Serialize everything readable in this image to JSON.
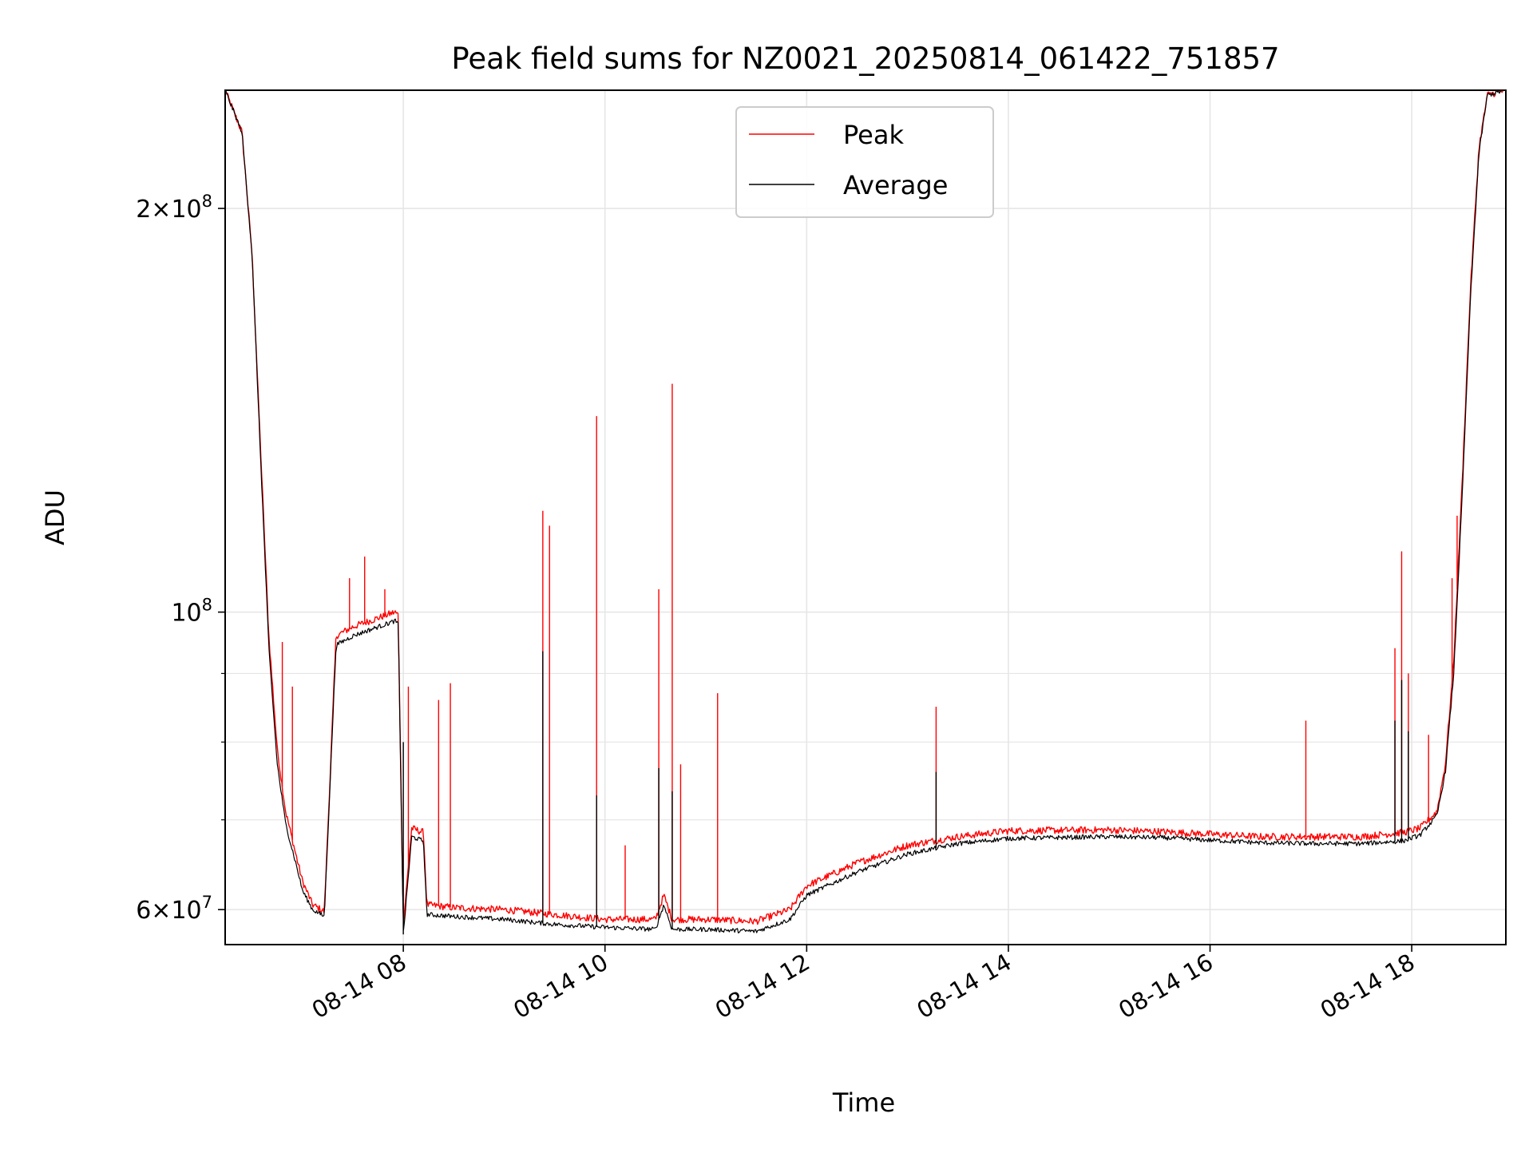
{
  "chart_data": {
    "type": "line",
    "title": "Peak field sums for NZ0021_20250814_061422_751857",
    "xlabel": "Time",
    "ylabel": "ADU",
    "y_scale": "log",
    "ylim": [
      56500000,
      245000000
    ],
    "xlim": [
      "2025-08-14 06:14",
      "2025-08-14 18:56"
    ],
    "grid": true,
    "legend_position": "upper center",
    "x_ticks": [
      {
        "label": "08-14 08",
        "value": "2025-08-14 08:00"
      },
      {
        "label": "08-14 10",
        "value": "2025-08-14 10:00"
      },
      {
        "label": "08-14 12",
        "value": "2025-08-14 12:00"
      },
      {
        "label": "08-14 14",
        "value": "2025-08-14 14:00"
      },
      {
        "label": "08-14 16",
        "value": "2025-08-14 16:00"
      },
      {
        "label": "08-14 18",
        "value": "2025-08-14 18:00"
      }
    ],
    "y_ticks": [
      {
        "label_base": "6×10",
        "label_exp": "7",
        "value": 60000000
      },
      {
        "label_base": "10",
        "label_exp": "8",
        "value": 100000000
      },
      {
        "label_base": "2×10",
        "label_exp": "8",
        "value": 200000000
      }
    ],
    "y_minor_ticks": [
      70000000,
      80000000,
      90000000
    ],
    "series": [
      {
        "name": "Peak",
        "color": "#ff0000",
        "x": [
          "2025-08-14 06:14",
          "2025-08-14 06:24",
          "2025-08-14 06:30",
          "2025-08-14 06:35",
          "2025-08-14 06:40",
          "2025-08-14 06:45",
          "2025-08-14 06:50",
          "2025-08-14 06:56",
          "2025-08-14 07:00",
          "2025-08-14 07:06",
          "2025-08-14 07:13",
          "2025-08-14 07:20",
          "2025-08-14 07:30",
          "2025-08-14 07:45",
          "2025-08-14 07:55",
          "2025-08-14 07:57",
          "2025-08-14 08:00",
          "2025-08-14 08:05",
          "2025-08-14 08:12",
          "2025-08-14 08:14",
          "2025-08-14 08:30",
          "2025-08-14 09:00",
          "2025-08-14 09:30",
          "2025-08-14 10:00",
          "2025-08-14 10:30",
          "2025-08-14 10:35",
          "2025-08-14 10:40",
          "2025-08-14 11:00",
          "2025-08-14 11:30",
          "2025-08-14 11:50",
          "2025-08-14 12:00",
          "2025-08-14 12:30",
          "2025-08-14 13:00",
          "2025-08-14 13:30",
          "2025-08-14 14:00",
          "2025-08-14 15:00",
          "2025-08-14 15:30",
          "2025-08-14 16:00",
          "2025-08-14 16:30",
          "2025-08-14 17:00",
          "2025-08-14 17:30",
          "2025-08-14 17:55",
          "2025-08-14 18:05",
          "2025-08-14 18:15",
          "2025-08-14 18:20",
          "2025-08-14 18:25",
          "2025-08-14 18:30",
          "2025-08-14 18:35",
          "2025-08-14 18:40",
          "2025-08-14 18:45",
          "2025-08-14 18:56"
        ],
        "values": [
          245000000,
          228000000,
          185000000,
          133000000,
          96000000,
          79000000,
          71000000,
          66000000,
          63000000,
          60500000,
          59800000,
          96000000,
          97500000,
          99000000,
          100000000,
          99500000,
          58500000,
          69000000,
          68500000,
          60500000,
          60200000,
          60000000,
          59500000,
          59000000,
          59000000,
          61500000,
          59000000,
          59000000,
          58800000,
          60000000,
          62500000,
          65000000,
          67000000,
          68000000,
          68700000,
          68800000,
          68600000,
          68300000,
          68000000,
          68000000,
          68000000,
          68500000,
          69000000,
          71000000,
          77000000,
          92000000,
          125000000,
          175000000,
          222000000,
          243000000,
          245000000
        ],
        "spikes": [
          {
            "x": "2025-08-14 06:48",
            "value": 95000000
          },
          {
            "x": "2025-08-14 06:54",
            "value": 88000000
          },
          {
            "x": "2025-08-14 07:17",
            "value": 78000000
          },
          {
            "x": "2025-08-14 07:28",
            "value": 106000000
          },
          {
            "x": "2025-08-14 07:37",
            "value": 110000000
          },
          {
            "x": "2025-08-14 07:49",
            "value": 104000000
          },
          {
            "x": "2025-08-14 08:03",
            "value": 88000000
          },
          {
            "x": "2025-08-14 08:21",
            "value": 86000000
          },
          {
            "x": "2025-08-14 08:28",
            "value": 88500000
          },
          {
            "x": "2025-08-14 09:23",
            "value": 119000000
          },
          {
            "x": "2025-08-14 09:27",
            "value": 116000000
          },
          {
            "x": "2025-08-14 09:55",
            "value": 140000000
          },
          {
            "x": "2025-08-14 10:12",
            "value": 67000000
          },
          {
            "x": "2025-08-14 10:32",
            "value": 104000000
          },
          {
            "x": "2025-08-14 10:40",
            "value": 148000000
          },
          {
            "x": "2025-08-14 10:45",
            "value": 77000000
          },
          {
            "x": "2025-08-14 11:07",
            "value": 87000000
          },
          {
            "x": "2025-08-14 13:17",
            "value": 85000000
          },
          {
            "x": "2025-08-14 16:57",
            "value": 83000000
          },
          {
            "x": "2025-08-14 17:50",
            "value": 94000000
          },
          {
            "x": "2025-08-14 17:54",
            "value": 111000000
          },
          {
            "x": "2025-08-14 17:58",
            "value": 90000000
          },
          {
            "x": "2025-08-14 18:10",
            "value": 81000000
          },
          {
            "x": "2025-08-14 18:24",
            "value": 106000000
          },
          {
            "x": "2025-08-14 18:27",
            "value": 118000000
          }
        ]
      },
      {
        "name": "Average",
        "color": "#000000",
        "x": [
          "2025-08-14 06:14",
          "2025-08-14 06:24",
          "2025-08-14 06:30",
          "2025-08-14 06:35",
          "2025-08-14 06:40",
          "2025-08-14 06:45",
          "2025-08-14 06:50",
          "2025-08-14 06:56",
          "2025-08-14 07:00",
          "2025-08-14 07:06",
          "2025-08-14 07:13",
          "2025-08-14 07:20",
          "2025-08-14 07:30",
          "2025-08-14 07:45",
          "2025-08-14 07:55",
          "2025-08-14 07:57",
          "2025-08-14 08:00",
          "2025-08-14 08:05",
          "2025-08-14 08:12",
          "2025-08-14 08:14",
          "2025-08-14 08:30",
          "2025-08-14 09:00",
          "2025-08-14 09:30",
          "2025-08-14 10:00",
          "2025-08-14 10:30",
          "2025-08-14 10:35",
          "2025-08-14 10:40",
          "2025-08-14 11:00",
          "2025-08-14 11:30",
          "2025-08-14 11:50",
          "2025-08-14 12:00",
          "2025-08-14 12:30",
          "2025-08-14 13:00",
          "2025-08-14 13:30",
          "2025-08-14 14:00",
          "2025-08-14 15:00",
          "2025-08-14 15:30",
          "2025-08-14 16:00",
          "2025-08-14 16:30",
          "2025-08-14 17:00",
          "2025-08-14 17:30",
          "2025-08-14 17:55",
          "2025-08-14 18:05",
          "2025-08-14 18:15",
          "2025-08-14 18:20",
          "2025-08-14 18:25",
          "2025-08-14 18:30",
          "2025-08-14 18:35",
          "2025-08-14 18:40",
          "2025-08-14 18:45",
          "2025-08-14 18:56"
        ],
        "values": [
          245000000,
          228000000,
          185000000,
          131000000,
          94000000,
          77000000,
          69500000,
          65000000,
          62000000,
          60000000,
          59300000,
          94500000,
          96000000,
          97500000,
          98500000,
          98000000,
          57500000,
          68000000,
          67500000,
          59500000,
          59300000,
          59000000,
          58500000,
          58200000,
          58000000,
          60500000,
          58000000,
          58000000,
          57800000,
          59000000,
          61500000,
          64000000,
          66000000,
          67200000,
          67800000,
          68000000,
          67900000,
          67600000,
          67300000,
          67200000,
          67200000,
          67500000,
          68200000,
          70500000,
          76000000,
          90000000,
          122000000,
          172000000,
          220000000,
          243000000,
          245000000
        ],
        "spikes": [
          {
            "x": "2025-08-14 08:00",
            "value": 80000000
          },
          {
            "x": "2025-08-14 09:23",
            "value": 93500000
          },
          {
            "x": "2025-08-14 09:55",
            "value": 73000000
          },
          {
            "x": "2025-08-14 10:32",
            "value": 76500000
          },
          {
            "x": "2025-08-14 10:40",
            "value": 73500000
          },
          {
            "x": "2025-08-14 13:17",
            "value": 76000000
          },
          {
            "x": "2025-08-14 17:50",
            "value": 83000000
          },
          {
            "x": "2025-08-14 17:54",
            "value": 89000000
          },
          {
            "x": "2025-08-14 17:58",
            "value": 81500000
          }
        ]
      }
    ]
  }
}
